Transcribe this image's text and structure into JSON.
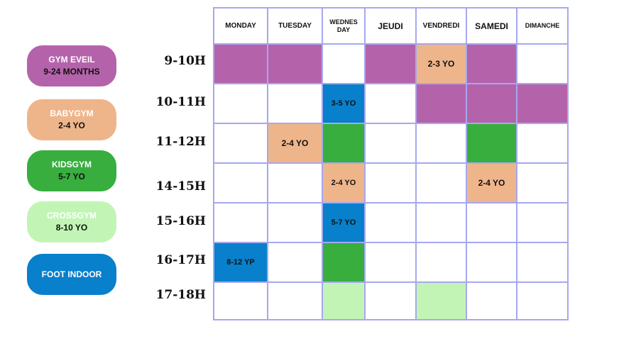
{
  "colors": {
    "gym_eveil": "#b463ab",
    "babygym": "#efb58a",
    "kidsgym": "#38ae3f",
    "crossgym": "#c2f5b5",
    "foot_indoor": "#0880cc"
  },
  "legend": [
    {
      "line1": "GYM EVEIL",
      "line2": "9-24 MONTHS"
    },
    {
      "line1": "BABYGYM",
      "line2": "2-4 YO"
    },
    {
      "line1": "KIDSGYM",
      "line2": "5-7 YO"
    },
    {
      "line1": "CROSSGYM",
      "line2": "8-10 YO"
    },
    {
      "line1": "FOOT INDOOR",
      "line2": ""
    }
  ],
  "days": [
    "MONDAY",
    "TUESDAY",
    "WEDNES DAY",
    "JEUDI",
    "VENDREDI",
    "SAMEDI",
    "DIMANCHE"
  ],
  "times": [
    "9-10H",
    "10-11H",
    "11-12H",
    "14-15H",
    "15-16H",
    "16-17H",
    "17-18H"
  ],
  "cells": {
    "r0c4": "2-3 YO",
    "r1c2": "3-5 YO",
    "r2c1": "2-4 YO",
    "r3c2": "2-4 YO",
    "r3c5": "2-4 YO",
    "r4c2": "5-7 YO",
    "r5c0": "8-12 YP"
  }
}
